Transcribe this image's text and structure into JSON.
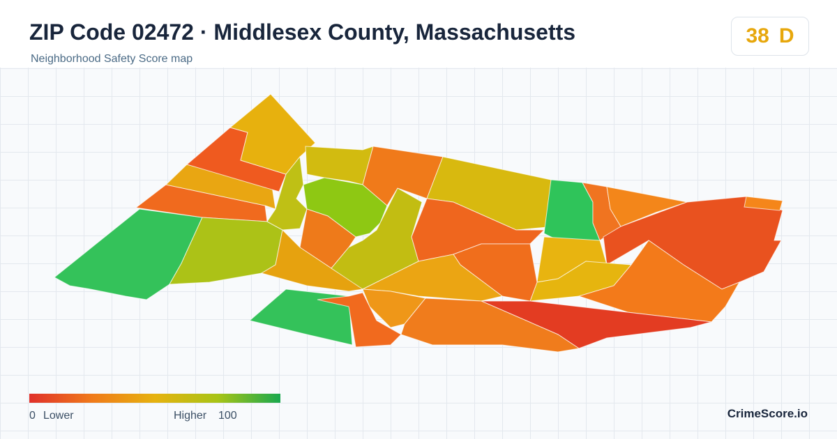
{
  "header": {
    "title": "ZIP Code 02472 · Middlesex County, Massachusetts",
    "subtitle": "Neighborhood Safety Score map"
  },
  "score": {
    "value": "38",
    "grade": "D"
  },
  "legend": {
    "min": "0",
    "min_label": "Lower",
    "max_label": "Higher",
    "max": "100"
  },
  "brand": "CrimeScore.io"
}
